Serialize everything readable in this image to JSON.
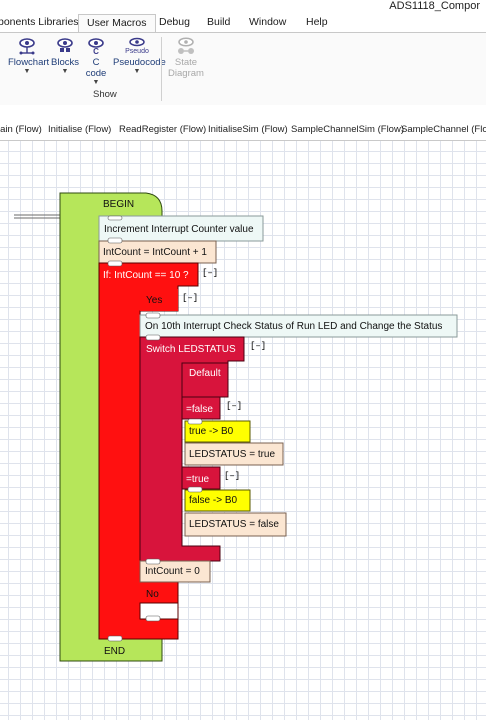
{
  "app": {
    "title": "ADS1118_Compor"
  },
  "menu": {
    "tabs": [
      "ponents Libraries",
      "User Macros",
      "Debug",
      "Build",
      "Window",
      "Help"
    ]
  },
  "ribbon": {
    "buttons": [
      {
        "label": "Flowchart",
        "icon": "flowchart-icon"
      },
      {
        "label": "Blocks",
        "icon": "blocks-icon"
      },
      {
        "label": "C",
        "sub": "code",
        "icon": "c-code-icon"
      },
      {
        "label": "Pseudocode",
        "icon": "pseudocode-icon",
        "icon_text": "Pseudo"
      },
      {
        "label": "State",
        "sub": "Diagram",
        "icon": "state-diagram-icon",
        "disabled": true
      }
    ],
    "group_label": "Show"
  },
  "doc_tabs": [
    "lain (Flow)",
    "Initialise (Flow)",
    "ReadRegister (Flow)",
    "InitialiseSim (Flow)",
    "SampleChannelSim (Flow)",
    "SampleChannel (Flow)"
  ],
  "flowchart": {
    "begin": "BEGIN",
    "end": "END",
    "comment1": "Increment Interrupt Counter value",
    "calc1": "IntCount = IntCount + 1",
    "decision": "If: IntCount == 10 ?",
    "yes": "Yes",
    "no": "No",
    "comment2": "On 10th Interrupt Check Status of Run LED and Change the Status",
    "switch": "Switch LEDSTATUS",
    "default": "Default",
    "case_false": "=false",
    "case_true": "=true",
    "out_true": "true -> B0",
    "calc_true": "LEDSTATUS = true",
    "out_false": "false -> B0",
    "calc_false": "LEDSTATUS = false",
    "calc_reset": "IntCount = 0",
    "collapse": "[–]",
    "colors": {
      "begin_end": "#b6e65a",
      "decision": "#ff1010",
      "switch": "#d8143c",
      "output": "#ffff00",
      "calc": "#fbe6d2",
      "comment": "#eef8f6"
    }
  }
}
